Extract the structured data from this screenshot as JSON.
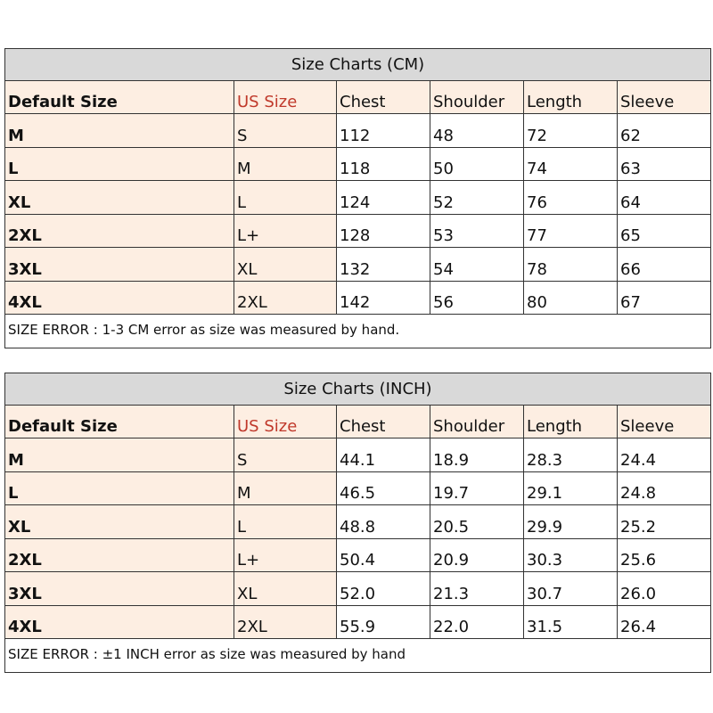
{
  "tables": [
    {
      "title": "Size Charts (CM)",
      "headers": [
        "Default Size",
        "US Size",
        "Chest",
        "Shoulder",
        "Length",
        "Sleeve"
      ],
      "rows": [
        [
          "M",
          "S",
          "112",
          "48",
          "72",
          "62"
        ],
        [
          "L",
          "M",
          "118",
          "50",
          "74",
          "63"
        ],
        [
          "XL",
          "L",
          "124",
          "52",
          "76",
          "64"
        ],
        [
          "2XL",
          "L+",
          "128",
          "53",
          "77",
          "65"
        ],
        [
          "3XL",
          "XL",
          "132",
          "54",
          "78",
          "66"
        ],
        [
          "4XL",
          "2XL",
          "142",
          "56",
          "80",
          "67"
        ]
      ],
      "footer": "SIZE ERROR : 1-3 CM error as size was measured by hand."
    },
    {
      "title": "Size Charts (INCH)",
      "headers": [
        "Default Size",
        "US Size",
        "Chest",
        "Shoulder",
        "Length",
        "Sleeve"
      ],
      "rows": [
        [
          "M",
          "S",
          "44.1",
          "18.9",
          "28.3",
          "24.4"
        ],
        [
          "L",
          "M",
          "46.5",
          "19.7",
          "29.1",
          "24.8"
        ],
        [
          "XL",
          "L",
          "48.8",
          "20.5",
          "29.9",
          "25.2"
        ],
        [
          "2XL",
          "L+",
          "50.4",
          "20.9",
          "30.3",
          "25.6"
        ],
        [
          "3XL",
          "XL",
          "52.0",
          "21.3",
          "30.7",
          "26.0"
        ],
        [
          "4XL",
          "2XL",
          "55.9",
          "22.0",
          "31.5",
          "26.4"
        ]
      ],
      "footer": "SIZE ERROR : ±1 INCH error as size was measured by hand"
    }
  ],
  "colors": {
    "title_bg": "#d9d9d9",
    "peach": "#fdeee2",
    "us_size": "#c0392b"
  }
}
